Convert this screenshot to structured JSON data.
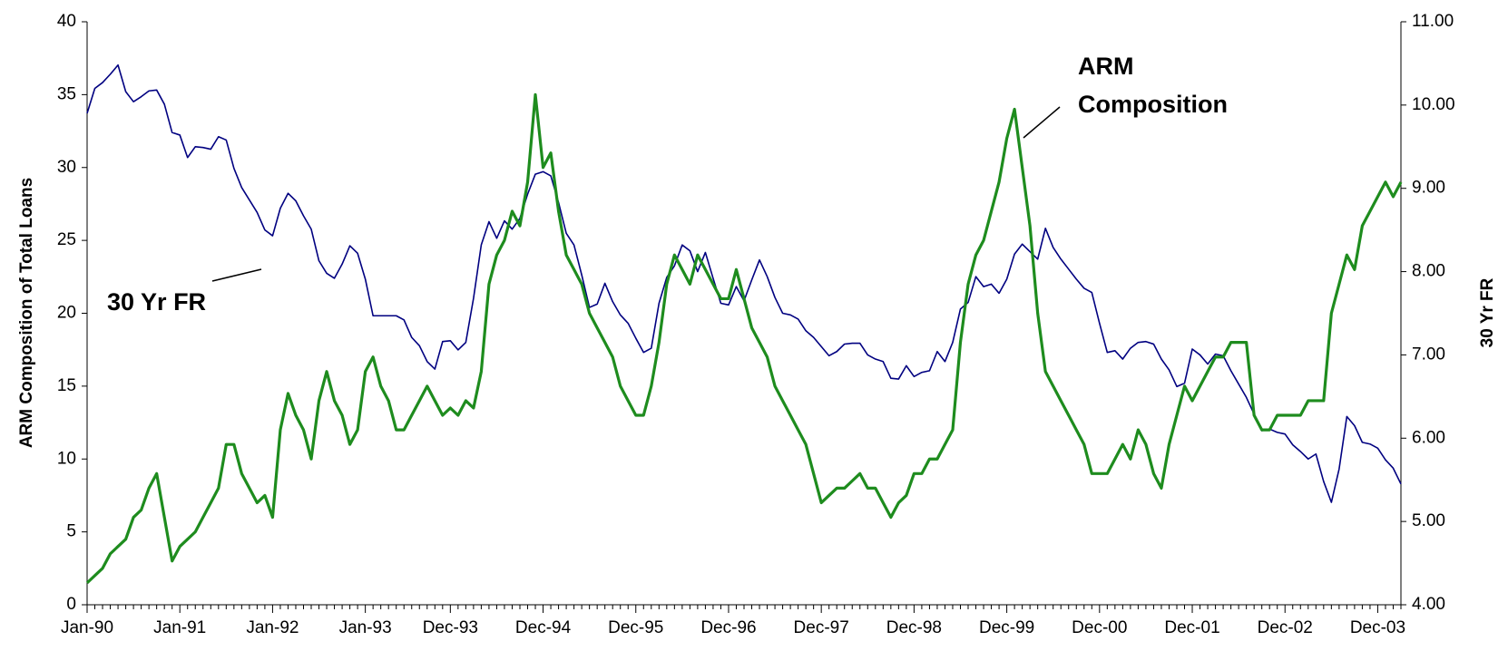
{
  "chart_data": {
    "type": "line",
    "y_label": "ARM Composition of Total Loans",
    "y2_label": "30 Yr FR",
    "annotations": [
      {
        "lines": [
          "ARM",
          "Composition"
        ]
      },
      {
        "lines": [
          "30 Yr FR"
        ]
      }
    ],
    "categories": [
      "Jan-90",
      null,
      null,
      null,
      null,
      null,
      null,
      null,
      null,
      null,
      null,
      null,
      "Jan-91",
      null,
      null,
      null,
      null,
      null,
      null,
      null,
      null,
      null,
      null,
      null,
      "Jan-92",
      null,
      null,
      null,
      null,
      null,
      null,
      null,
      null,
      null,
      null,
      null,
      "Jan-93",
      null,
      null,
      null,
      null,
      null,
      null,
      null,
      null,
      null,
      null,
      "Dec-93",
      null,
      null,
      null,
      null,
      null,
      null,
      null,
      null,
      null,
      null,
      null,
      "Dec-94",
      null,
      null,
      null,
      null,
      null,
      null,
      null,
      null,
      null,
      null,
      null,
      "Dec-95",
      null,
      null,
      null,
      null,
      null,
      null,
      null,
      null,
      null,
      null,
      null,
      "Dec-96",
      null,
      null,
      null,
      null,
      null,
      null,
      null,
      null,
      null,
      null,
      null,
      "Dec-97",
      null,
      null,
      null,
      null,
      null,
      null,
      null,
      null,
      null,
      null,
      null,
      "Dec-98",
      null,
      null,
      null,
      null,
      null,
      null,
      null,
      null,
      null,
      null,
      null,
      "Dec-99",
      null,
      null,
      null,
      null,
      null,
      null,
      null,
      null,
      null,
      null,
      null,
      "Dec-00",
      null,
      null,
      null,
      null,
      null,
      null,
      null,
      null,
      null,
      null,
      null,
      "Dec-01",
      null,
      null,
      null,
      null,
      null,
      null,
      null,
      null,
      null,
      null,
      null,
      "Dec-02",
      null,
      null,
      null,
      null,
      null,
      null,
      null,
      null,
      null,
      null,
      null,
      "Dec-03",
      null,
      null,
      null
    ],
    "series": [
      {
        "color": "#1e8c1e",
        "axis": "y",
        "values": [
          1.5,
          2,
          2.5,
          3.5,
          4,
          4.5,
          6,
          6.5,
          8,
          9,
          6,
          3,
          4,
          4.5,
          5,
          6,
          7,
          8,
          11,
          11,
          9,
          8,
          7,
          7.5,
          6,
          12,
          14.5,
          13,
          12,
          10,
          14,
          16,
          14,
          13,
          11,
          12,
          16,
          17,
          15,
          14,
          12,
          12,
          13,
          14,
          15,
          14,
          13,
          13.5,
          13,
          14,
          13.5,
          16,
          22,
          24,
          25,
          27,
          26,
          29,
          35,
          30,
          31,
          27,
          24,
          23,
          22,
          20,
          19,
          18,
          17,
          15,
          14,
          13,
          13,
          15,
          18,
          22,
          24,
          23,
          22,
          24,
          23,
          22,
          21,
          21,
          23,
          21,
          19,
          18,
          17,
          15,
          14,
          13,
          12,
          11,
          9,
          7,
          7.5,
          8,
          8,
          8.5,
          9,
          8,
          8,
          7,
          6,
          7,
          7.5,
          9,
          9,
          10,
          10,
          11,
          12,
          18,
          22,
          24,
          25,
          27,
          29,
          32,
          34,
          30,
          26,
          20,
          16,
          15,
          14,
          13,
          12,
          11,
          9,
          9,
          9,
          10,
          11,
          10,
          12,
          11,
          9,
          8,
          11,
          13,
          15,
          14,
          15,
          16,
          17,
          17,
          18,
          18,
          18,
          13,
          12,
          12,
          13,
          13,
          13,
          13,
          14,
          14,
          14,
          20,
          22,
          24,
          23,
          26,
          27,
          28,
          29,
          28,
          29
        ]
      },
      {
        "color": "#000080",
        "axis": "y2",
        "values": [
          9.9,
          10.2,
          10.27,
          10.37,
          10.48,
          10.16,
          10.04,
          10.1,
          10.17,
          10.18,
          10.01,
          9.67,
          9.64,
          9.37,
          9.5,
          9.49,
          9.47,
          9.62,
          9.58,
          9.24,
          9.01,
          8.86,
          8.71,
          8.5,
          8.43,
          8.76,
          8.94,
          8.85,
          8.67,
          8.51,
          8.13,
          7.98,
          7.92,
          8.09,
          8.31,
          8.22,
          7.91,
          7.47,
          7.47,
          7.47,
          7.47,
          7.42,
          7.21,
          7.11,
          6.92,
          6.83,
          7.16,
          7.17,
          7.06,
          7.15,
          7.68,
          8.32,
          8.6,
          8.4,
          8.61,
          8.51,
          8.64,
          8.93,
          9.17,
          9.2,
          9.15,
          8.83,
          8.46,
          8.32,
          7.96,
          7.57,
          7.61,
          7.86,
          7.64,
          7.48,
          7.38,
          7.2,
          7.03,
          7.08,
          7.62,
          7.93,
          8.07,
          8.32,
          8.25,
          8.0,
          8.23,
          7.92,
          7.62,
          7.6,
          7.82,
          7.65,
          7.9,
          8.14,
          7.94,
          7.69,
          7.5,
          7.48,
          7.43,
          7.29,
          7.21,
          7.1,
          6.99,
          7.04,
          7.13,
          7.14,
          7.14,
          7.0,
          6.95,
          6.92,
          6.72,
          6.71,
          6.87,
          6.74,
          6.79,
          6.81,
          7.04,
          6.92,
          7.15,
          7.55,
          7.63,
          7.94,
          7.82,
          7.85,
          7.74,
          7.91,
          8.21,
          8.33,
          8.24,
          8.15,
          8.52,
          8.29,
          8.15,
          8.03,
          7.91,
          7.8,
          7.75,
          7.38,
          7.03,
          7.05,
          6.95,
          7.08,
          7.15,
          7.16,
          7.13,
          6.95,
          6.82,
          6.62,
          6.66,
          7.07,
          7.0,
          6.89,
          7.01,
          6.99,
          6.81,
          6.65,
          6.49,
          6.29,
          6.09,
          6.11,
          6.07,
          6.05,
          5.92,
          5.84,
          5.75,
          5.81,
          5.48,
          5.23,
          5.63,
          6.26,
          6.15,
          5.95,
          5.93,
          5.88,
          5.74,
          5.64,
          5.45
        ]
      }
    ],
    "ylim": [
      0,
      40
    ],
    "yticks": [
      0,
      5,
      10,
      15,
      20,
      25,
      30,
      35,
      40
    ],
    "y2lim": [
      4,
      11
    ],
    "y2ticks": [
      {
        "value": 4,
        "label": "4.00"
      },
      {
        "value": 5,
        "label": "5.00"
      },
      {
        "value": 6,
        "label": "6.00"
      },
      {
        "value": 7,
        "label": "7.00"
      },
      {
        "value": 8,
        "label": "8.00"
      },
      {
        "value": 9,
        "label": "9.00"
      },
      {
        "value": 10,
        "label": "10.00"
      },
      {
        "value": 11,
        "label": "11.00"
      }
    ],
    "grid": false
  }
}
